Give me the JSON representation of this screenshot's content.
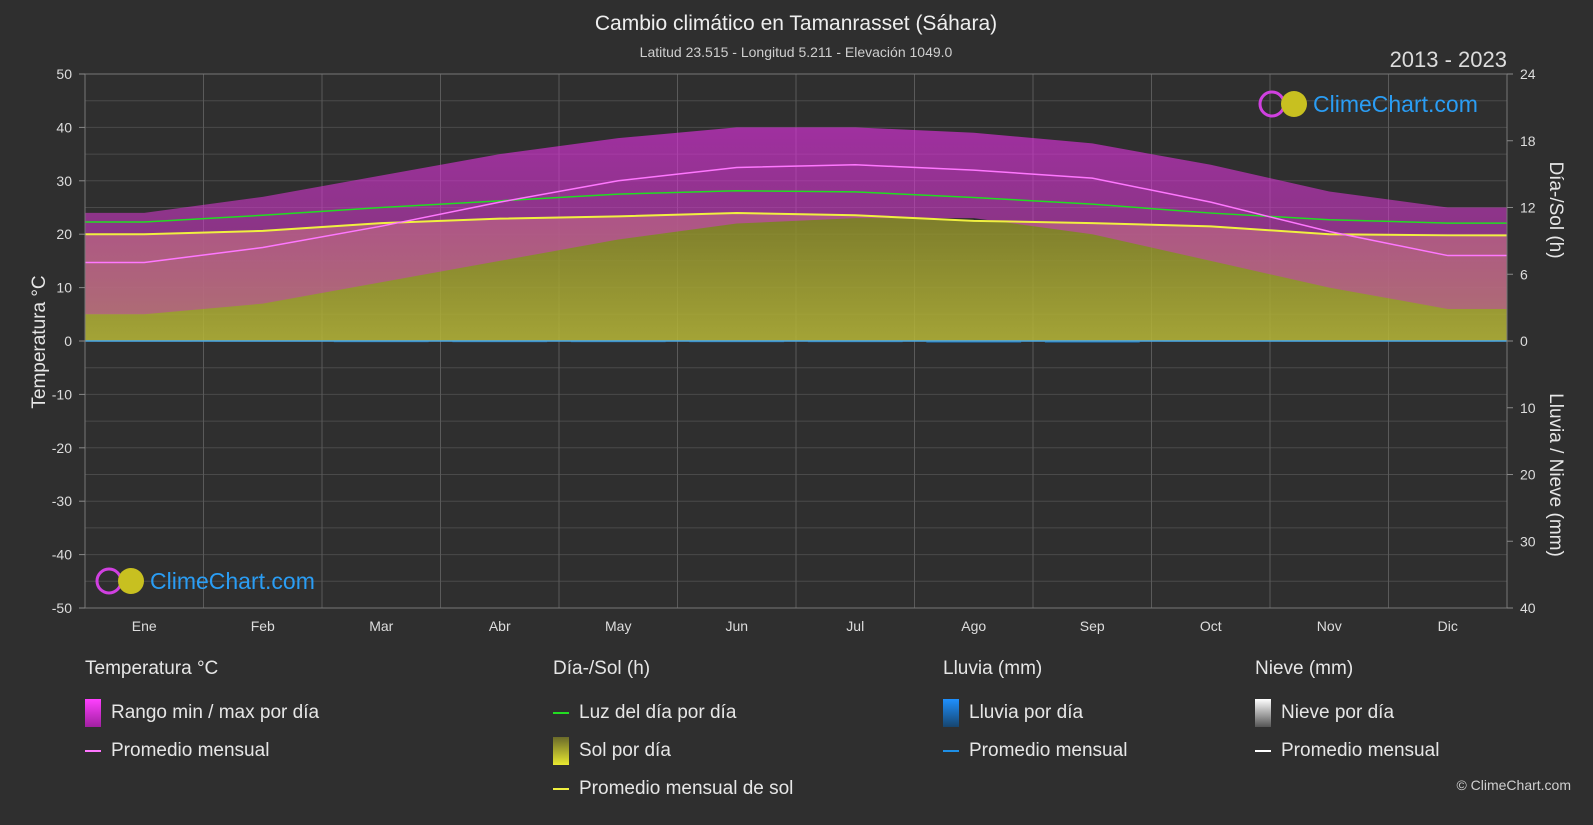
{
  "header": {
    "title": "Cambio climático en Tamanrasset (Sáhara)",
    "subtitle": "Latitud 23.515 - Longitud 5.211 - Elevación 1049.0",
    "years": "2013 - 2023"
  },
  "logo_text": "ClimeChart.com",
  "copyright": "© ClimeChart.com",
  "colors": {
    "background": "#2f2f2f",
    "temp_range": "#d42ad4",
    "temp_avg": "#ff77ff",
    "daylight": "#22dd22",
    "sunshine": "#b8b832",
    "sun_avg": "#f0f040",
    "rain": "#1e8fe6",
    "snow": "#ffffff",
    "zero_line": "#4aa8e8"
  },
  "chart_data": {
    "type": "area",
    "months": [
      "Ene",
      "Feb",
      "Mar",
      "Abr",
      "May",
      "Jun",
      "Jul",
      "Ago",
      "Sep",
      "Oct",
      "Nov",
      "Dic"
    ],
    "left_axis": {
      "label": "Temperatura °C",
      "min": -50,
      "max": 50,
      "ticks": [
        "50",
        "40",
        "30",
        "20",
        "10",
        "0",
        "-10",
        "-20",
        "-30",
        "-40",
        "-50"
      ]
    },
    "right_axis_top": {
      "label": "Día-/Sol (h)",
      "min": 0,
      "max": 24,
      "ticks": [
        "24",
        "18",
        "12",
        "6",
        "0"
      ]
    },
    "right_axis_bottom": {
      "label": "Lluvia / Nieve (mm)",
      "min": 0,
      "max": 40,
      "ticks": [
        "10",
        "20",
        "30",
        "40"
      ]
    },
    "series": {
      "temp_monthly_avg": [
        14.7,
        17.5,
        21.5,
        26.0,
        30.0,
        32.5,
        33.0,
        32.0,
        30.5,
        26.0,
        20.5,
        16.0
      ],
      "temp_daily_max": [
        24,
        27,
        31,
        35,
        38,
        40,
        40,
        39,
        37,
        33,
        28,
        25
      ],
      "temp_daily_min": [
        5,
        7,
        11,
        15,
        19,
        22,
        23,
        23,
        20,
        15,
        10,
        6
      ],
      "daylight_hours": [
        10.7,
        11.3,
        12.0,
        12.6,
        13.2,
        13.5,
        13.4,
        12.9,
        12.3,
        11.5,
        10.9,
        10.6
      ],
      "sunshine_hours": [
        9.6,
        9.9,
        10.6,
        11.0,
        11.2,
        11.5,
        11.3,
        10.8,
        10.6,
        10.3,
        9.6,
        9.5
      ],
      "sun_monthly_avg": [
        9.6,
        9.9,
        10.6,
        11.0,
        11.2,
        11.5,
        11.3,
        10.8,
        10.6,
        10.3,
        9.6,
        9.5
      ],
      "rain_monthly_avg_mm": [
        0.1,
        0.1,
        0.2,
        0.2,
        0.2,
        0.2,
        0.2,
        0.3,
        0.3,
        0.1,
        0.1,
        0.1
      ],
      "snow_monthly_avg_mm": [
        0,
        0,
        0,
        0,
        0,
        0,
        0,
        0,
        0,
        0,
        0,
        0
      ]
    }
  },
  "legend": {
    "temperature": {
      "title": "Temperatura °C",
      "range": "Rango min / max por día",
      "avg": "Promedio mensual"
    },
    "sun": {
      "title": "Día-/Sol (h)",
      "daylight": "Luz del día por día",
      "sunshine": "Sol por día",
      "avg": "Promedio mensual de sol"
    },
    "rain": {
      "title": "Lluvia (mm)",
      "per_day": "Lluvia por día",
      "avg": "Promedio mensual"
    },
    "snow": {
      "title": "Nieve (mm)",
      "per_day": "Nieve por día",
      "avg": "Promedio mensual"
    }
  }
}
